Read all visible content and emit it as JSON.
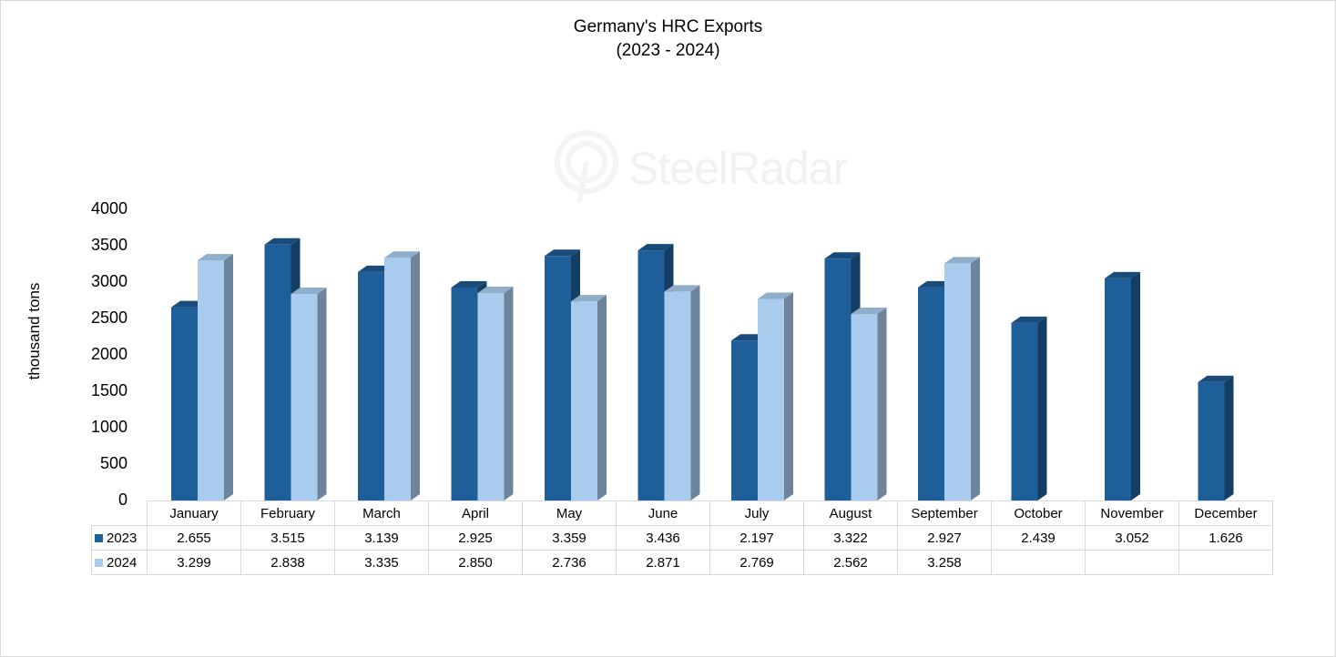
{
  "chart_data": {
    "type": "bar",
    "title": "Germany's HRC Exports",
    "subtitle": "(2023 - 2024)",
    "ylabel": "thousand tons",
    "xlabel": "",
    "ylim": [
      0,
      4000
    ],
    "yticks": [
      "0",
      "500",
      "1000",
      "1500",
      "2000",
      "2500",
      "3000",
      "3500",
      "4000"
    ],
    "grid": false,
    "legend": "data-table",
    "categories": [
      "January",
      "February",
      "March",
      "April",
      "May",
      "June",
      "July",
      "August",
      "September",
      "October",
      "November",
      "December"
    ],
    "series": [
      {
        "name": "2023",
        "color": "#1f5f99",
        "values": [
          2655,
          3515,
          3139,
          2925,
          3359,
          3436,
          2197,
          3322,
          2927,
          2439,
          3052,
          1626
        ],
        "labels": [
          "2.655",
          "3.515",
          "3.139",
          "2.925",
          "3.359",
          "3.436",
          "2.197",
          "3.322",
          "2.927",
          "2.439",
          "3.052",
          "1.626"
        ]
      },
      {
        "name": "2024",
        "color": "#a9cbee",
        "values": [
          3299,
          2838,
          3335,
          2850,
          2736,
          2871,
          2769,
          2562,
          3258,
          null,
          null,
          null
        ],
        "labels": [
          "3.299",
          "2.838",
          "3.335",
          "2.850",
          "2.736",
          "2.871",
          "2.769",
          "2.562",
          "3.258",
          "",
          "",
          ""
        ]
      }
    ]
  },
  "watermark": "SteelRadar"
}
